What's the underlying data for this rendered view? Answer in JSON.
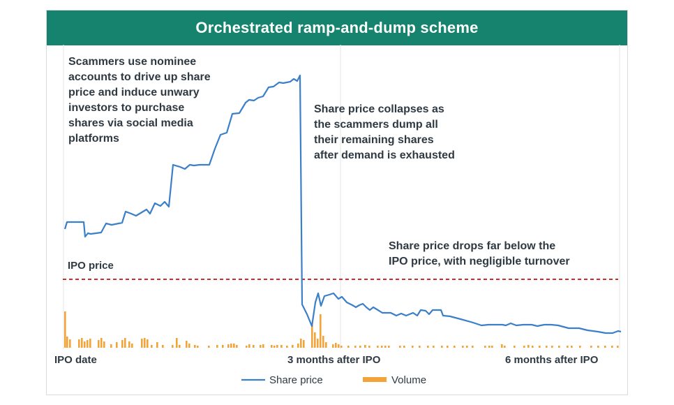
{
  "colors": {
    "header_bg": "#16836e",
    "price_line": "#3b7fc9",
    "volume_bar": "#f2a43a",
    "ipo_line": "#d62a2a"
  },
  "header": {
    "title": "Orchestrated ramp-and-dump scheme"
  },
  "annotations": {
    "ramp": [
      "Scammers use nominee",
      "accounts to drive up share",
      "price and induce unwary",
      "investors to purchase",
      "shares via social media",
      "platforms"
    ],
    "dump": [
      "Share price collapses as",
      "the scammers dump all",
      "their remaining shares",
      "after demand is exhausted"
    ],
    "below": [
      "Share price drops far below the",
      "IPO price, with negligible turnover"
    ],
    "ipo_price_label": "IPO price"
  },
  "legend": {
    "price": "Share price",
    "volume": "Volume"
  },
  "chart_data": {
    "type": "line",
    "x_ticks": [
      "IPO date",
      "3 months after IPO",
      "6 months after IPO"
    ],
    "ipo_price": 0,
    "series": [
      {
        "name": "Share price",
        "kind": "line"
      },
      {
        "name": "Volume",
        "kind": "bar"
      }
    ]
  }
}
